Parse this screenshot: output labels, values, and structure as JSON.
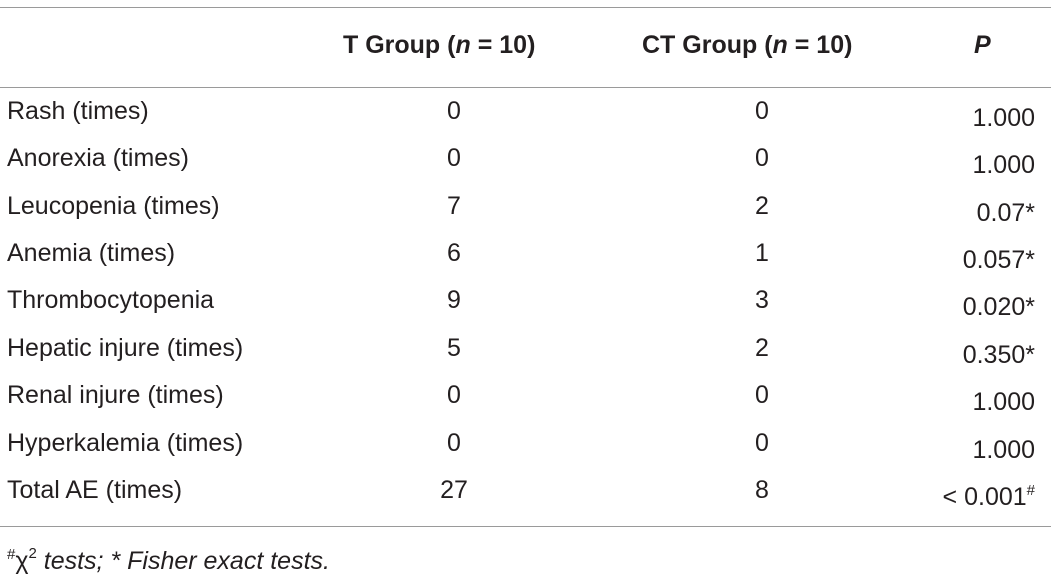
{
  "table": {
    "headers": {
      "col1": "",
      "col2_prefix": "T Group (",
      "col2_n": "n",
      "col2_suffix": " = 10)",
      "col3_prefix": "CT Group (",
      "col3_n": "n",
      "col3_suffix": " = 10)",
      "col4": "P"
    },
    "rows": [
      {
        "label": "Rash (times)",
        "t": "0",
        "ct": "0",
        "p": "1.000",
        "mark": ""
      },
      {
        "label": "Anorexia (times)",
        "t": "0",
        "ct": "0",
        "p": "1.000",
        "mark": ""
      },
      {
        "label": "Leucopenia (times)",
        "t": "7",
        "ct": "2",
        "p": "0.07*",
        "mark": ""
      },
      {
        "label": "Anemia (times)",
        "t": "6",
        "ct": "1",
        "p": "0.057*",
        "mark": ""
      },
      {
        "label": "Thrombocytopenia",
        "t": "9",
        "ct": "3",
        "p": "0.020*",
        "mark": ""
      },
      {
        "label": "Hepatic injure (times)",
        "t": "5",
        "ct": "2",
        "p": "0.350*",
        "mark": ""
      },
      {
        "label": "Renal injure (times)",
        "t": "0",
        "ct": "0",
        "p": "1.000",
        "mark": ""
      },
      {
        "label": "Hyperkalemia (times)",
        "t": "0",
        "ct": "0",
        "p": "1.000",
        "mark": ""
      },
      {
        "label": "Total AE (times)",
        "t": "27",
        "ct": "8",
        "p": "< 0.001",
        "mark": "#"
      }
    ]
  },
  "footnote": {
    "hash": "#",
    "chi": "χ",
    "chi_exp": "2",
    "text": " tests; * Fisher exact tests."
  }
}
